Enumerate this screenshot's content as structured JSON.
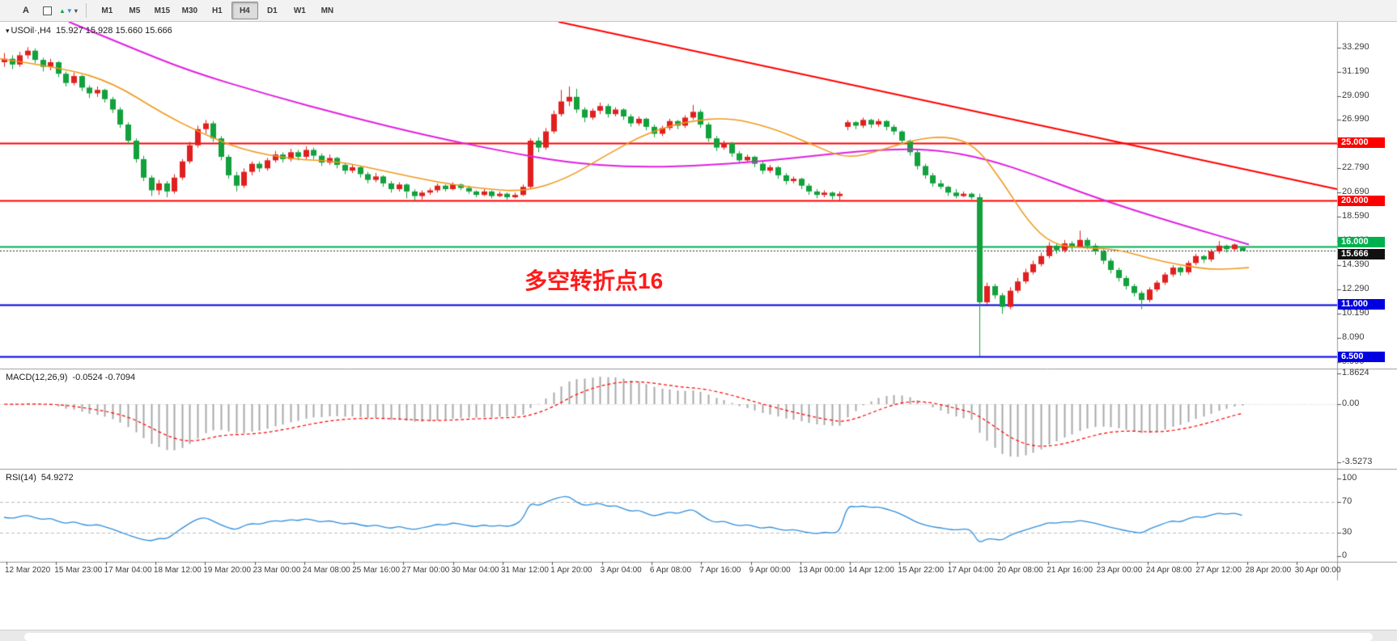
{
  "toolbar": {
    "tools": [
      {
        "name": "text-tool",
        "label": "A"
      },
      {
        "name": "shapes-tool",
        "label": ""
      },
      {
        "name": "arrows-tool",
        "label": ""
      }
    ],
    "timeframes": [
      "M1",
      "M5",
      "M15",
      "M30",
      "H1",
      "H4",
      "D1",
      "W1",
      "MN"
    ],
    "active_timeframe": "H4"
  },
  "chart": {
    "symbol_label": "USOil·,H4",
    "ohlc_label": "15.927 15.928 15.660 15.666",
    "last_price": "15.666",
    "annotation": {
      "text": "多空转折点16",
      "color": "#ff1a1a"
    },
    "levels": [
      {
        "label": "25.000",
        "price": 25.0,
        "color": "#ff0000"
      },
      {
        "label": "20.000",
        "price": 20.0,
        "color": "#ff0000"
      },
      {
        "label": "16.000",
        "price": 16.0,
        "color": "#00b050"
      },
      {
        "label": "11.000",
        "price": 11.0,
        "color": "#0000e0"
      },
      {
        "label": "6.500",
        "price": 6.5,
        "color": "#0000e0"
      }
    ]
  },
  "price_axis": {
    "labels": [
      "33.290",
      "31.190",
      "29.090",
      "26.990",
      "24.890",
      "22.790",
      "20.690",
      "18.590",
      "16.490",
      "14.390",
      "12.290",
      "10.190",
      "8.090",
      "5.990"
    ]
  },
  "time_axis": {
    "labels": [
      "12 Mar 2020",
      "15 Mar 23:00",
      "17 Mar 04:00",
      "18 Mar 12:00",
      "19 Mar 20:00",
      "23 Mar 00:00",
      "24 Mar 08:00",
      "25 Mar 16:00",
      "27 Mar 00:00",
      "30 Mar 04:00",
      "31 Mar 12:00",
      "1 Apr 20:00",
      "3 Apr 04:00",
      "6 Apr 08:00",
      "7 Apr 16:00",
      "9 Apr 00:00",
      "13 Apr 00:00",
      "14 Apr 12:00",
      "15 Apr 22:00",
      "17 Apr 04:00",
      "20 Apr 08:00",
      "21 Apr 16:00",
      "23 Apr 00:00",
      "24 Apr 08:00",
      "27 Apr 12:00",
      "28 Apr 20:00",
      "30 Apr 00:00"
    ]
  },
  "macd": {
    "label": "MACD(12,26,9)",
    "values_label": "-0.0524 -0.7094",
    "axis": [
      "1.8624",
      "0.00",
      "-3.5273"
    ],
    "params": {
      "fast": 12,
      "slow": 26,
      "signal": 9
    }
  },
  "rsi": {
    "label": "RSI(14)",
    "value_label": "54.9272",
    "period": 14,
    "levels": [
      70,
      30
    ],
    "axis": [
      "100",
      "70",
      "30",
      "0"
    ]
  },
  "chart_data": {
    "type": "candlestick",
    "title": "USOil H4",
    "symbol": "USOil",
    "timeframe": "H4",
    "ylim": [
      5.45,
      35.5
    ],
    "last_price": 15.666,
    "colors": {
      "up": "#e02020",
      "down": "#12a13c"
    },
    "hlines": [
      {
        "price": 25.0,
        "label": "25.000",
        "color": "#ff0000",
        "width": 2
      },
      {
        "price": 20.0,
        "label": "20.000",
        "color": "#ff0000",
        "width": 2
      },
      {
        "price": 16.0,
        "label": "16.000",
        "color": "#00b050",
        "width": 2
      },
      {
        "price": 11.0,
        "label": "11.000",
        "color": "#0000e0",
        "width": 2
      },
      {
        "price": 6.5,
        "label": "6.500",
        "color": "#0000e0",
        "width": 2
      }
    ],
    "overlays": {
      "trendline": {
        "color": "#ff0000",
        "from": [
          690,
          35.5
        ],
        "to": [
          1652,
          21.0
        ]
      },
      "ma_slow_magenta": [
        [
          85,
          35.5
        ],
        [
          150,
          33.6
        ],
        [
          235,
          31.2
        ],
        [
          330,
          29.2
        ],
        [
          430,
          27.3
        ],
        [
          530,
          25.6
        ],
        [
          620,
          24.3
        ],
        [
          700,
          23.3
        ],
        [
          780,
          22.9
        ],
        [
          860,
          23.0
        ],
        [
          940,
          23.4
        ],
        [
          1020,
          24.0
        ],
        [
          1100,
          24.5
        ],
        [
          1160,
          24.4
        ],
        [
          1220,
          23.6
        ],
        [
          1280,
          22.2
        ],
        [
          1340,
          20.6
        ],
        [
          1400,
          19.2
        ],
        [
          1460,
          17.9
        ],
        [
          1543,
          16.2
        ]
      ],
      "ma_fast_orange": [
        [
          0,
          32.3
        ],
        [
          80,
          31.5
        ],
        [
          140,
          30.2
        ],
        [
          200,
          27.6
        ],
        [
          250,
          25.8
        ],
        [
          300,
          24.4
        ],
        [
          360,
          23.6
        ],
        [
          420,
          23.4
        ],
        [
          480,
          22.5
        ],
        [
          540,
          21.6
        ],
        [
          600,
          21.0
        ],
        [
          650,
          20.8
        ],
        [
          700,
          21.9
        ],
        [
          750,
          24.0
        ],
        [
          800,
          25.9
        ],
        [
          850,
          26.9
        ],
        [
          900,
          27.2
        ],
        [
          950,
          26.4
        ],
        [
          1000,
          25.0
        ],
        [
          1045,
          23.6
        ],
        [
          1090,
          24.4
        ],
        [
          1130,
          25.3
        ],
        [
          1170,
          25.6
        ],
        [
          1205,
          24.8
        ],
        [
          1240,
          21.5
        ],
        [
          1270,
          18.2
        ],
        [
          1300,
          16.2
        ],
        [
          1340,
          15.9
        ],
        [
          1380,
          15.8
        ],
        [
          1420,
          15.0
        ],
        [
          1460,
          14.4
        ],
        [
          1500,
          14.0
        ],
        [
          1543,
          14.2
        ]
      ]
    },
    "candles": [
      [
        32.0,
        32.8,
        31.6,
        32.3
      ],
      [
        32.3,
        32.6,
        31.4,
        31.8
      ],
      [
        31.8,
        32.9,
        31.6,
        32.6
      ],
      [
        32.6,
        33.3,
        32.3,
        33.0
      ],
      [
        33.0,
        33.2,
        31.9,
        32.2
      ],
      [
        32.2,
        32.4,
        31.2,
        31.6
      ],
      [
        31.6,
        32.3,
        31.3,
        32.0
      ],
      [
        32.0,
        32.1,
        30.7,
        31.0
      ],
      [
        31.0,
        31.2,
        29.9,
        30.2
      ],
      [
        30.2,
        31.1,
        30.0,
        30.8
      ],
      [
        30.8,
        30.9,
        29.5,
        29.8
      ],
      [
        29.8,
        30.0,
        28.9,
        29.3
      ],
      [
        29.3,
        29.9,
        29.0,
        29.6
      ],
      [
        29.6,
        29.7,
        28.5,
        28.8
      ],
      [
        28.8,
        29.0,
        27.6,
        27.9
      ],
      [
        27.9,
        28.1,
        26.3,
        26.6
      ],
      [
        26.6,
        26.8,
        24.9,
        25.2
      ],
      [
        25.2,
        25.4,
        23.3,
        23.6
      ],
      [
        23.6,
        23.9,
        21.7,
        22.0
      ],
      [
        22.0,
        22.2,
        20.4,
        20.9
      ],
      [
        20.9,
        21.8,
        20.5,
        21.5
      ],
      [
        21.5,
        21.7,
        20.3,
        20.8
      ],
      [
        20.8,
        22.3,
        20.6,
        22.0
      ],
      [
        22.0,
        23.6,
        21.8,
        23.4
      ],
      [
        23.4,
        25.1,
        23.2,
        24.8
      ],
      [
        24.8,
        26.5,
        24.6,
        26.2
      ],
      [
        26.2,
        27.0,
        25.8,
        26.7
      ],
      [
        26.7,
        26.9,
        25.1,
        25.4
      ],
      [
        25.4,
        25.6,
        23.5,
        23.8
      ],
      [
        23.8,
        24.0,
        21.9,
        22.2
      ],
      [
        22.2,
        22.5,
        20.8,
        21.3
      ],
      [
        21.3,
        22.8,
        21.1,
        22.5
      ],
      [
        22.5,
        23.4,
        22.2,
        23.2
      ],
      [
        23.2,
        23.4,
        22.5,
        22.8
      ],
      [
        22.8,
        23.7,
        22.6,
        23.5
      ],
      [
        23.5,
        24.3,
        23.3,
        24.0
      ],
      [
        24.0,
        24.2,
        23.3,
        23.6
      ],
      [
        23.6,
        24.5,
        23.4,
        24.2
      ],
      [
        24.2,
        24.4,
        23.5,
        23.8
      ],
      [
        23.8,
        24.7,
        23.6,
        24.4
      ],
      [
        24.4,
        24.6,
        23.6,
        23.9
      ],
      [
        23.9,
        24.1,
        23.0,
        23.3
      ],
      [
        23.3,
        24.0,
        23.1,
        23.7
      ],
      [
        23.7,
        23.8,
        22.8,
        23.1
      ],
      [
        23.1,
        23.3,
        22.3,
        22.6
      ],
      [
        22.6,
        23.1,
        22.4,
        22.9
      ],
      [
        22.9,
        23.0,
        22.0,
        22.3
      ],
      [
        22.3,
        22.5,
        21.5,
        21.8
      ],
      [
        21.8,
        22.4,
        21.6,
        22.1
      ],
      [
        22.1,
        22.2,
        21.2,
        21.5
      ],
      [
        21.5,
        21.7,
        20.7,
        21.0
      ],
      [
        21.0,
        21.6,
        20.8,
        21.4
      ],
      [
        21.4,
        21.5,
        20.2,
        20.8
      ],
      [
        20.8,
        21.0,
        20.0,
        20.4
      ],
      [
        20.4,
        20.9,
        20.1,
        20.7
      ],
      [
        20.7,
        21.1,
        20.5,
        20.9
      ],
      [
        20.9,
        21.5,
        20.7,
        21.3
      ],
      [
        21.3,
        21.4,
        20.8,
        21.0
      ],
      [
        21.0,
        21.6,
        20.9,
        21.4
      ],
      [
        21.4,
        21.5,
        20.9,
        21.1
      ],
      [
        21.1,
        21.3,
        20.6,
        20.8
      ],
      [
        20.8,
        20.9,
        20.3,
        20.5
      ],
      [
        20.5,
        21.0,
        20.4,
        20.8
      ],
      [
        20.8,
        20.9,
        20.2,
        20.4
      ],
      [
        20.4,
        20.8,
        20.3,
        20.6
      ],
      [
        20.6,
        20.7,
        20.1,
        20.3
      ],
      [
        20.3,
        20.7,
        20.2,
        20.5
      ],
      [
        20.5,
        21.4,
        20.4,
        21.2
      ],
      [
        21.2,
        25.4,
        21.0,
        25.2
      ],
      [
        25.2,
        25.5,
        24.2,
        24.6
      ],
      [
        24.6,
        26.3,
        24.4,
        26.0
      ],
      [
        26.0,
        27.8,
        25.8,
        27.5
      ],
      [
        27.5,
        29.6,
        27.3,
        28.6
      ],
      [
        28.6,
        29.9,
        28.2,
        29.0
      ],
      [
        29.0,
        29.7,
        27.6,
        27.9
      ],
      [
        27.9,
        28.1,
        26.8,
        27.2
      ],
      [
        27.2,
        28.0,
        27.0,
        27.8
      ],
      [
        27.8,
        28.5,
        27.5,
        28.2
      ],
      [
        28.2,
        28.4,
        27.2,
        27.5
      ],
      [
        27.5,
        28.1,
        27.3,
        27.9
      ],
      [
        27.9,
        28.0,
        27.0,
        27.3
      ],
      [
        27.3,
        27.5,
        26.4,
        26.7
      ],
      [
        26.7,
        27.3,
        26.5,
        27.1
      ],
      [
        27.1,
        27.2,
        26.1,
        26.4
      ],
      [
        26.4,
        26.6,
        25.5,
        25.8
      ],
      [
        25.8,
        26.5,
        25.6,
        26.3
      ],
      [
        26.3,
        27.1,
        26.1,
        26.9
      ],
      [
        26.9,
        27.0,
        26.2,
        26.5
      ],
      [
        26.5,
        27.4,
        26.3,
        27.2
      ],
      [
        27.2,
        28.3,
        27.0,
        27.7
      ],
      [
        27.7,
        27.9,
        26.3,
        26.6
      ],
      [
        26.6,
        26.8,
        25.1,
        25.4
      ],
      [
        25.4,
        25.6,
        24.3,
        24.6
      ],
      [
        24.6,
        25.2,
        24.4,
        25.0
      ],
      [
        25.0,
        25.1,
        23.8,
        24.1
      ],
      [
        24.1,
        24.3,
        23.2,
        23.5
      ],
      [
        23.5,
        24.0,
        23.3,
        23.8
      ],
      [
        23.8,
        23.9,
        22.9,
        23.2
      ],
      [
        23.2,
        23.4,
        22.3,
        22.6
      ],
      [
        22.6,
        23.1,
        22.4,
        22.9
      ],
      [
        22.9,
        23.0,
        21.9,
        22.2
      ],
      [
        22.2,
        22.4,
        21.4,
        21.7
      ],
      [
        21.7,
        22.1,
        21.5,
        21.9
      ],
      [
        21.9,
        22.0,
        21.0,
        21.3
      ],
      [
        21.3,
        21.5,
        20.5,
        20.8
      ],
      [
        20.8,
        21.0,
        20.2,
        20.5
      ],
      [
        20.5,
        20.9,
        20.3,
        20.7
      ],
      [
        20.7,
        20.8,
        20.1,
        20.4
      ],
      [
        20.4,
        20.8,
        20.0,
        20.6
      ],
      [
        26.4,
        27.0,
        26.1,
        26.8
      ],
      [
        26.8,
        26.9,
        26.2,
        26.5
      ],
      [
        26.5,
        27.2,
        26.3,
        27.0
      ],
      [
        27.0,
        27.1,
        26.3,
        26.6
      ],
      [
        26.6,
        27.1,
        26.4,
        26.9
      ],
      [
        26.9,
        27.0,
        26.1,
        26.4
      ],
      [
        26.4,
        26.6,
        25.7,
        26.0
      ],
      [
        26.0,
        26.1,
        24.9,
        25.2
      ],
      [
        25.2,
        25.3,
        23.9,
        24.2
      ],
      [
        24.2,
        24.4,
        22.7,
        23.0
      ],
      [
        23.0,
        23.2,
        21.9,
        22.2
      ],
      [
        22.2,
        22.4,
        21.2,
        21.5
      ],
      [
        21.5,
        21.8,
        21.0,
        21.2
      ],
      [
        21.2,
        21.3,
        20.4,
        20.7
      ],
      [
        20.7,
        21.0,
        20.2,
        20.4
      ],
      [
        20.4,
        20.8,
        20.3,
        20.6
      ],
      [
        20.6,
        20.7,
        20.1,
        20.3
      ],
      [
        20.3,
        20.6,
        6.5,
        11.2
      ],
      [
        11.2,
        12.9,
        11.0,
        12.6
      ],
      [
        12.6,
        12.8,
        11.5,
        11.8
      ],
      [
        11.8,
        12.0,
        10.2,
        10.8
      ],
      [
        10.8,
        12.5,
        10.6,
        12.2
      ],
      [
        12.2,
        13.3,
        12.0,
        13.0
      ],
      [
        13.0,
        14.1,
        12.8,
        13.8
      ],
      [
        13.8,
        14.8,
        13.6,
        14.5
      ],
      [
        14.5,
        15.5,
        14.3,
        15.2
      ],
      [
        15.2,
        16.4,
        15.0,
        16.1
      ],
      [
        16.1,
        16.3,
        15.4,
        15.7
      ],
      [
        15.7,
        16.6,
        15.5,
        16.3
      ],
      [
        16.3,
        16.5,
        15.7,
        16.0
      ],
      [
        16.0,
        17.4,
        15.9,
        16.6
      ],
      [
        16.6,
        16.8,
        15.8,
        16.1
      ],
      [
        16.1,
        16.3,
        15.3,
        15.6
      ],
      [
        15.6,
        15.8,
        14.5,
        14.8
      ],
      [
        14.8,
        15.0,
        13.7,
        14.0
      ],
      [
        14.0,
        14.2,
        13.0,
        13.3
      ],
      [
        13.3,
        13.5,
        12.3,
        12.6
      ],
      [
        12.6,
        12.8,
        11.7,
        12.0
      ],
      [
        12.0,
        12.2,
        10.6,
        11.4
      ],
      [
        11.4,
        12.5,
        11.2,
        12.3
      ],
      [
        12.3,
        13.1,
        12.1,
        12.9
      ],
      [
        12.9,
        13.8,
        12.7,
        13.6
      ],
      [
        13.6,
        14.4,
        13.4,
        14.2
      ],
      [
        14.2,
        14.3,
        13.5,
        13.8
      ],
      [
        13.8,
        14.8,
        13.6,
        14.6
      ],
      [
        14.6,
        15.4,
        14.4,
        15.2
      ],
      [
        15.2,
        15.3,
        14.6,
        14.9
      ],
      [
        14.9,
        15.8,
        14.7,
        15.6
      ],
      [
        15.6,
        16.5,
        15.4,
        16.1
      ],
      [
        16.1,
        16.2,
        15.5,
        15.8
      ],
      [
        15.8,
        16.3,
        15.6,
        16.2
      ],
      [
        15.927,
        15.928,
        15.66,
        15.666
      ]
    ]
  }
}
